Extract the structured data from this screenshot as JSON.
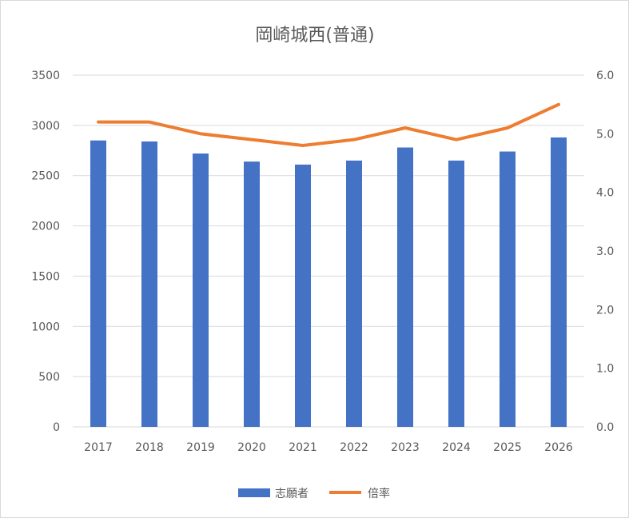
{
  "chart_data": {
    "type": "bar",
    "title": "岡崎城西(普通)",
    "categories": [
      "2017",
      "2018",
      "2019",
      "2020",
      "2021",
      "2022",
      "2023",
      "2024",
      "2025",
      "2026"
    ],
    "series": [
      {
        "name": "志願者",
        "type": "bar",
        "axis": "left",
        "values": [
          2850,
          2840,
          2720,
          2640,
          2610,
          2650,
          2780,
          2650,
          2740,
          2880
        ]
      },
      {
        "name": "倍率",
        "type": "line",
        "axis": "right",
        "values": [
          5.2,
          5.2,
          5.0,
          4.9,
          4.8,
          4.9,
          5.1,
          4.9,
          5.1,
          5.5
        ]
      }
    ],
    "y_left": {
      "min": 0,
      "max": 3500,
      "step": 500,
      "ticks": [
        "0",
        "500",
        "1000",
        "1500",
        "2000",
        "2500",
        "3000",
        "3500"
      ]
    },
    "y_right": {
      "min": 0,
      "max": 6,
      "step": 1,
      "ticks": [
        "0.0",
        "1.0",
        "2.0",
        "3.0",
        "4.0",
        "5.0",
        "6.0"
      ]
    },
    "grid": true,
    "legend_position": "bottom",
    "colors": {
      "bar": "#4472C4",
      "line": "#ED7D31",
      "grid": "#d9d9d9",
      "text": "#595959"
    }
  }
}
